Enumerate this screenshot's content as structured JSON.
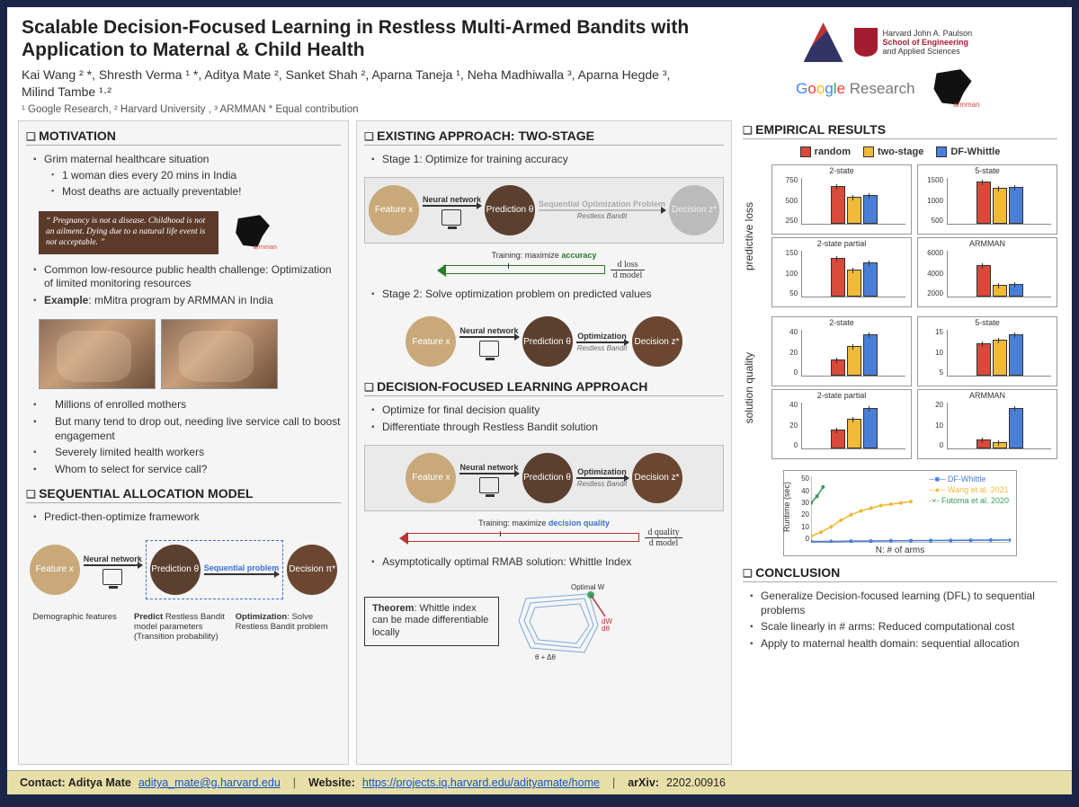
{
  "header": {
    "title": "Scalable Decision-Focused Learning in Restless Multi-Armed Bandits with Application to Maternal & Child Health",
    "authors": "Kai Wang ² *, Shresth Verma ¹ *, Aditya Mate ², Sanket Shah ², Aparna Taneja ¹, Neha Madhiwalla ³, Aparna Hegde ³, Milind Tambe ¹·²",
    "affiliations": "¹ Google Research, ² Harvard University , ³ ARMMAN * Equal contribution",
    "harvard_text1": "Harvard John A. Paulson",
    "harvard_text2": "School of Engineering",
    "harvard_text3": "and Applied Sciences"
  },
  "col1": {
    "motivation_h": "MOTIVATION",
    "m1": "Grim maternal healthcare situation",
    "m1a": "1 woman dies every 20 mins in India",
    "m1b": "Most deaths are actually preventable!",
    "quote": "“ Pregnancy is not a disease. Childhood is not an ailment. Dying due to a natural life event is not acceptable. ”",
    "m2": "Common low-resource public health challenge: Optimization of limited monitoring resources",
    "m3": "Example: mMitra program by ARMMAN in India",
    "m4a": "Millions of enrolled mothers",
    "m4b": "But many tend to drop out, needing live service call to boost engagement",
    "m4c": "Severely limited health workers",
    "m4d": "Whom to select for service call?",
    "seq_h": "SEQUENTIAL ALLOCATION MODEL",
    "s1": "Predict-then-optimize framework",
    "pipe": {
      "feature": "Feature\n x",
      "nn": "Neural network",
      "pred": "Prediction\n θ",
      "seq": "Sequential problem",
      "dec": "Decision\n π*"
    },
    "cap1": "Demographic features",
    "cap2_b": "Predict",
    "cap2": " Restless Bandit model parameters (Transition probability)",
    "cap3_b": "Optimization",
    "cap3": ": Solve Restless Bandit problem"
  },
  "col2": {
    "exist_h": "EXISTING APPROACH: TWO-STAGE",
    "e1": "Stage 1: Optimize for training accuracy",
    "e2": "Stage 2: Solve optimization problem on predicted values",
    "pipe1": {
      "feature": "Feature\n x",
      "nn": "Neural network",
      "pred": "Prediction\n θ",
      "opt": "Sequential Optimization Problem",
      "rb": "Restless Bandit",
      "dec": "Decision\n z*"
    },
    "train_acc_pre": "Training: maximize ",
    "train_acc": "accuracy",
    "frac_loss_n": "d loss",
    "frac_loss_d": "d model",
    "pipe2": {
      "feature": "Feature\n x",
      "nn": "Neural network",
      "pred": "Prediction\n θ",
      "opt": "Optimization",
      "rb": "Restless Bandit",
      "dec": "Decision\n z*"
    },
    "dfl_h": "DECISION-FOCUSED LEARNING APPROACH",
    "d1": "Optimize for final decision quality",
    "d2": "Differentiate through Restless Bandit solution",
    "train_dq_pre": "Training: maximize ",
    "train_dq": "decision quality",
    "frac_q_n": "d quality",
    "frac_q_d": "d model",
    "d3": "Asymptotically optimal RMAB solution: Whittle Index",
    "theorem_b": "Theorem",
    "theorem": ": Whittle index can be made differentiable locally",
    "wh_opt": "Optimal W",
    "wh_dw": "dW/dθ",
    "wh_dt": "θ + Δθ"
  },
  "col3": {
    "emp_h": "EMPIRICAL RESULTS",
    "legend": {
      "random": "random",
      "two": "two-stage",
      "df": "DF-Whittle"
    },
    "colors": {
      "random": "#d84a3a",
      "two": "#f0b93a",
      "df": "#4a7fd8",
      "border": "#333333"
    },
    "ylabel1": "predictive loss",
    "ylabel2": "solution quality",
    "charts_loss": [
      {
        "title": "2-state",
        "ymax": 750,
        "yticks": [
          "750",
          "500",
          "250"
        ],
        "vals": [
          620,
          440,
          470
        ]
      },
      {
        "title": "5-state",
        "ymax": 1500,
        "yticks": [
          "1500",
          "1000",
          "500"
        ],
        "vals": [
          1400,
          1180,
          1220
        ]
      },
      {
        "title": "2-state partial",
        "ymax": 150,
        "yticks": [
          "150",
          "100",
          "50"
        ],
        "vals": [
          128,
          90,
          112
        ]
      },
      {
        "title": "ARMMAN",
        "ymax": 6000,
        "yticks": [
          "6000",
          "4000",
          "2000"
        ],
        "vals": [
          4100,
          1600,
          1700
        ]
      }
    ],
    "charts_qual": [
      {
        "title": "2-state",
        "ymax": 50,
        "yticks": [
          "40",
          "20",
          "0"
        ],
        "vals": [
          18,
          33,
          45
        ]
      },
      {
        "title": "5-state",
        "ymax": 16,
        "yticks": [
          "15",
          "10",
          "5"
        ],
        "vals": [
          11.5,
          12.5,
          14.5
        ]
      },
      {
        "title": "2-state partial",
        "ymax": 50,
        "yticks": [
          "40",
          "20",
          "0"
        ],
        "vals": [
          21,
          33,
          44
        ]
      },
      {
        "title": "ARMMAN",
        "ymax": 25,
        "yticks": [
          "20",
          "10",
          "0"
        ],
        "vals": [
          5,
          3.5,
          22
        ]
      }
    ],
    "runtime": {
      "title": "",
      "ylabel": "Runtime (sec)",
      "xlabel": "N: # of arms",
      "yticks": [
        "0",
        "10",
        "20",
        "30",
        "40",
        "50"
      ],
      "xticks": [
        "0",
        "20",
        "40",
        "60",
        "80",
        "100"
      ],
      "series": {
        "df": {
          "label": "DF-Whittle",
          "color": "#4a7fd8",
          "pts": [
            [
              0,
              1
            ],
            [
              10,
              1
            ],
            [
              20,
              1.2
            ],
            [
              30,
              1.3
            ],
            [
              40,
              1.5
            ],
            [
              50,
              1.6
            ],
            [
              60,
              1.7
            ],
            [
              70,
              1.8
            ],
            [
              80,
              1.9
            ],
            [
              90,
              2
            ],
            [
              100,
              2.1
            ]
          ]
        },
        "wang": {
          "label": "Wang et al. 2021",
          "color": "#f0b93a",
          "pts": [
            [
              0,
              5
            ],
            [
              5,
              8
            ],
            [
              10,
              12
            ],
            [
              15,
              17
            ],
            [
              20,
              21
            ],
            [
              25,
              24
            ],
            [
              30,
              26
            ],
            [
              35,
              28
            ],
            [
              40,
              29
            ],
            [
              45,
              30
            ],
            [
              50,
              31
            ]
          ]
        },
        "fut": {
          "label": "Futoma et al. 2020",
          "color": "#3a9a5a",
          "pts": [
            [
              0,
              30
            ],
            [
              3,
              35
            ],
            [
              6,
              42
            ]
          ]
        }
      }
    },
    "conc_h": "CONCLUSION",
    "c1": "Generalize Decision-focused learning (DFL) to sequential problems",
    "c2": "Scale linearly in # arms: Reduced computational cost",
    "c3": "Apply to maternal health domain: sequential allocation"
  },
  "footer": {
    "contact_l": "Contact: Aditya Mate ",
    "contact": "aditya_mate@g.harvard.edu",
    "website_l": "Website: ",
    "website": "https://projects.iq.harvard.edu/adityamate/home",
    "arxiv_l": "arXiv: ",
    "arxiv": "2202.00916"
  }
}
